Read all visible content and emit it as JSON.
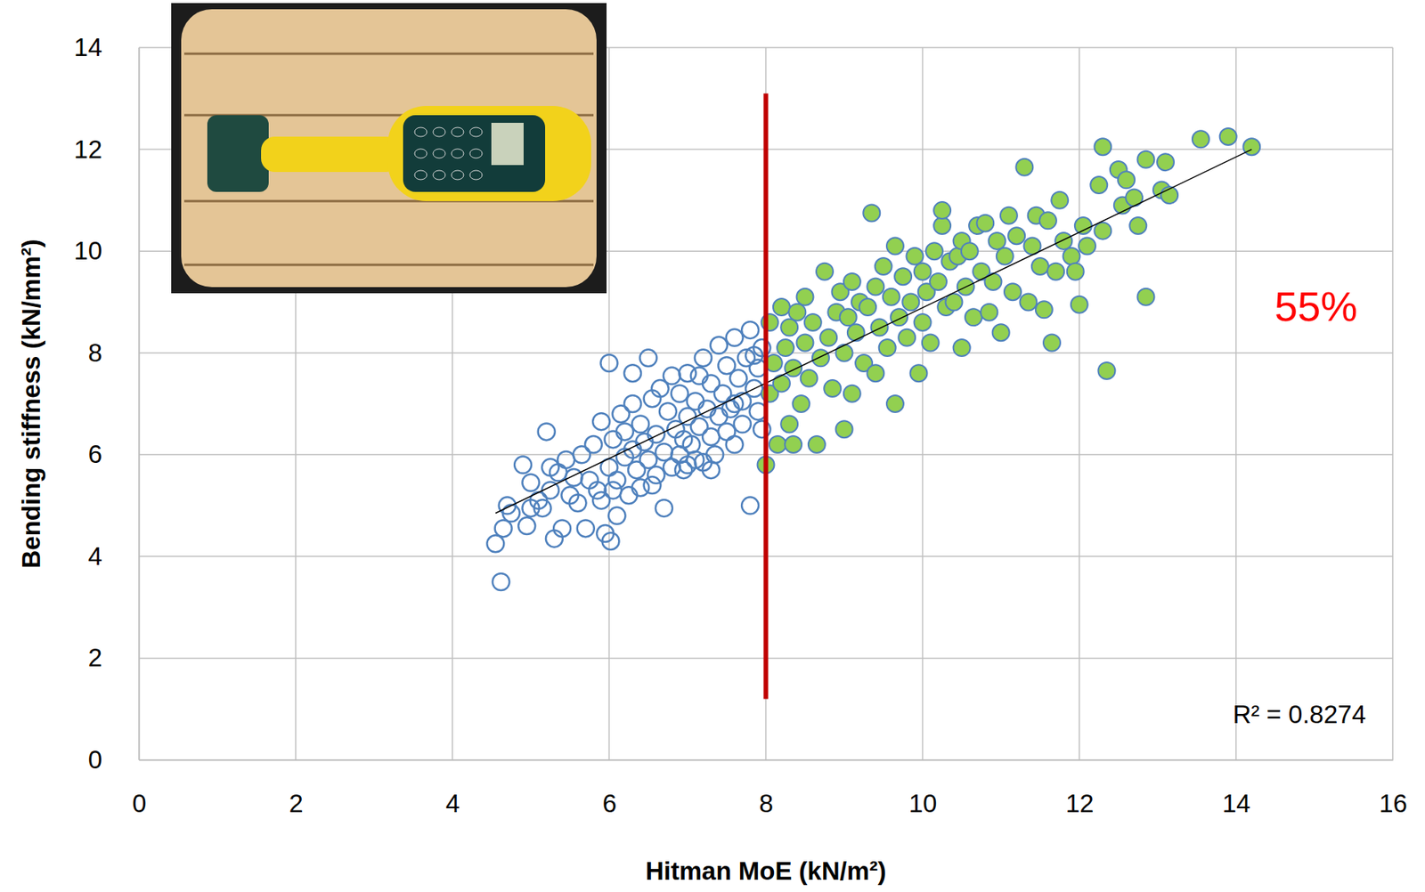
{
  "chart_data": {
    "type": "scatter",
    "x_label": "Hitman MoE (kN/m²)",
    "y_label": "Bending stiffness (kN/mm²)",
    "xlim": [
      0,
      16
    ],
    "ylim": [
      0,
      14
    ],
    "xticks": [
      0,
      2,
      4,
      6,
      8,
      10,
      12,
      14,
      16
    ],
    "yticks": [
      0,
      2,
      4,
      6,
      8,
      10,
      12,
      14
    ],
    "grid": true,
    "series": [
      {
        "type": "scatter",
        "color": "#4f81bd",
        "marker": "hollow",
        "x": [
          4.55,
          4.62,
          4.65,
          4.7,
          4.75,
          4.9,
          4.95,
          5.0,
          5.0,
          5.1,
          5.15,
          5.2,
          5.25,
          5.3,
          5.35,
          5.4,
          5.45,
          5.5,
          5.55,
          5.6,
          5.65,
          5.7,
          5.75,
          5.8,
          5.85,
          5.9,
          5.95,
          6.0,
          6.0,
          6.02,
          6.05,
          6.1,
          6.1,
          6.15,
          6.2,
          6.2,
          6.25,
          6.3,
          6.3,
          6.35,
          6.4,
          6.4,
          6.45,
          6.5,
          6.5,
          6.55,
          6.6,
          6.6,
          6.65,
          6.7,
          6.7,
          6.75,
          6.8,
          6.8,
          6.85,
          6.9,
          6.9,
          6.95,
          7.0,
          7.0,
          7.05,
          7.1,
          7.1,
          7.15,
          7.2,
          7.2,
          7.25,
          7.3,
          7.3,
          7.35,
          7.4,
          7.4,
          7.45,
          7.5,
          7.5,
          7.55,
          7.6,
          7.6,
          7.65,
          7.7,
          7.7,
          7.75,
          7.8,
          7.8,
          7.85,
          7.9,
          7.9,
          7.95,
          7.95,
          7.3,
          6.3,
          5.9,
          6.05,
          6.55,
          7.6,
          7.85,
          6.95,
          7.15,
          5.25,
          7.0
        ],
        "values": [
          4.25,
          3.5,
          4.55,
          5.0,
          4.85,
          5.8,
          4.6,
          5.45,
          4.95,
          5.1,
          4.95,
          6.45,
          5.3,
          4.35,
          5.65,
          4.55,
          5.9,
          5.2,
          5.55,
          5.05,
          6.0,
          4.55,
          5.5,
          6.2,
          5.3,
          6.65,
          4.45,
          7.8,
          5.75,
          4.3,
          6.3,
          4.8,
          5.5,
          6.8,
          5.95,
          6.45,
          5.2,
          6.1,
          7.0,
          5.7,
          6.6,
          5.35,
          6.25,
          7.9,
          5.9,
          7.1,
          6.4,
          5.6,
          7.3,
          4.95,
          6.05,
          6.85,
          5.75,
          7.55,
          6.5,
          6.0,
          7.2,
          5.7,
          6.75,
          7.6,
          6.2,
          5.9,
          7.05,
          6.55,
          7.9,
          5.85,
          6.9,
          6.35,
          7.4,
          6.0,
          8.15,
          6.75,
          7.2,
          6.45,
          7.75,
          6.9,
          8.3,
          6.2,
          7.5,
          7.05,
          6.6,
          7.9,
          5.0,
          8.45,
          7.3,
          6.85,
          7.7,
          8.1,
          6.5,
          5.7,
          7.6,
          5.1,
          5.3,
          5.4,
          7.0,
          7.95,
          6.3,
          7.55,
          5.75,
          5.8
        ]
      },
      {
        "type": "scatter",
        "color": "#92d050",
        "marker": "filled",
        "x": [
          8.0,
          8.05,
          8.05,
          8.1,
          8.15,
          8.2,
          8.2,
          8.25,
          8.3,
          8.3,
          8.35,
          8.35,
          8.4,
          8.45,
          8.5,
          8.5,
          8.55,
          8.6,
          8.65,
          8.7,
          8.75,
          8.8,
          8.85,
          8.9,
          8.95,
          9.0,
          9.0,
          9.05,
          9.1,
          9.1,
          9.15,
          9.2,
          9.25,
          9.3,
          9.35,
          9.4,
          9.4,
          9.45,
          9.5,
          9.55,
          9.6,
          9.65,
          9.65,
          9.7,
          9.75,
          9.8,
          9.85,
          9.9,
          9.95,
          10.0,
          10.0,
          10.05,
          10.1,
          10.15,
          10.2,
          10.25,
          10.25,
          10.3,
          10.35,
          10.4,
          10.45,
          10.5,
          10.5,
          10.55,
          10.6,
          10.65,
          10.7,
          10.75,
          10.8,
          10.85,
          10.9,
          10.95,
          11.0,
          11.05,
          11.1,
          11.15,
          11.2,
          11.3,
          11.35,
          11.4,
          11.45,
          11.5,
          11.55,
          11.6,
          11.65,
          11.7,
          11.75,
          11.8,
          11.9,
          11.95,
          12.0,
          12.05,
          12.1,
          12.25,
          12.3,
          12.3,
          12.35,
          12.5,
          12.55,
          12.6,
          12.7,
          12.75,
          12.85,
          12.85,
          13.05,
          13.1,
          13.15,
          13.55,
          13.9,
          14.2
        ],
        "values": [
          5.8,
          7.2,
          8.6,
          7.8,
          6.2,
          8.9,
          7.4,
          8.1,
          6.6,
          8.5,
          6.2,
          7.7,
          8.8,
          7.0,
          9.1,
          8.2,
          7.5,
          8.6,
          6.2,
          7.9,
          9.6,
          8.3,
          7.3,
          8.8,
          9.2,
          6.5,
          8.0,
          8.7,
          9.4,
          7.2,
          8.4,
          9.0,
          7.8,
          8.9,
          10.75,
          7.6,
          9.3,
          8.5,
          9.7,
          8.1,
          9.1,
          7.0,
          10.1,
          8.7,
          9.5,
          8.3,
          9.0,
          9.9,
          7.6,
          8.6,
          9.6,
          9.2,
          8.2,
          10.0,
          9.4,
          10.5,
          10.8,
          8.9,
          9.8,
          9.0,
          9.9,
          8.1,
          10.2,
          9.3,
          10.0,
          8.7,
          10.5,
          9.6,
          10.55,
          8.8,
          9.4,
          10.2,
          8.4,
          9.9,
          10.7,
          9.2,
          10.3,
          11.65,
          9.0,
          10.1,
          10.7,
          9.7,
          8.85,
          10.6,
          8.2,
          9.6,
          11.0,
          10.2,
          9.9,
          9.6,
          8.95,
          10.5,
          10.1,
          11.3,
          12.05,
          10.4,
          7.65,
          11.6,
          10.9,
          11.4,
          11.05,
          10.5,
          9.1,
          11.8,
          11.2,
          11.75,
          11.1,
          12.2,
          12.25,
          12.05
        ]
      },
      {
        "type": "line",
        "color": "#000000",
        "x": [
          4.55,
          14.2
        ],
        "values": [
          4.85,
          12.0
        ]
      }
    ],
    "vline": {
      "x": 8,
      "values": [
        1.2,
        13.1
      ],
      "color": "#c00000"
    },
    "annotations": [
      {
        "text": "55%",
        "color": "#ff0000"
      },
      {
        "text": "R² = 0.8274",
        "color": "#000000"
      }
    ]
  }
}
